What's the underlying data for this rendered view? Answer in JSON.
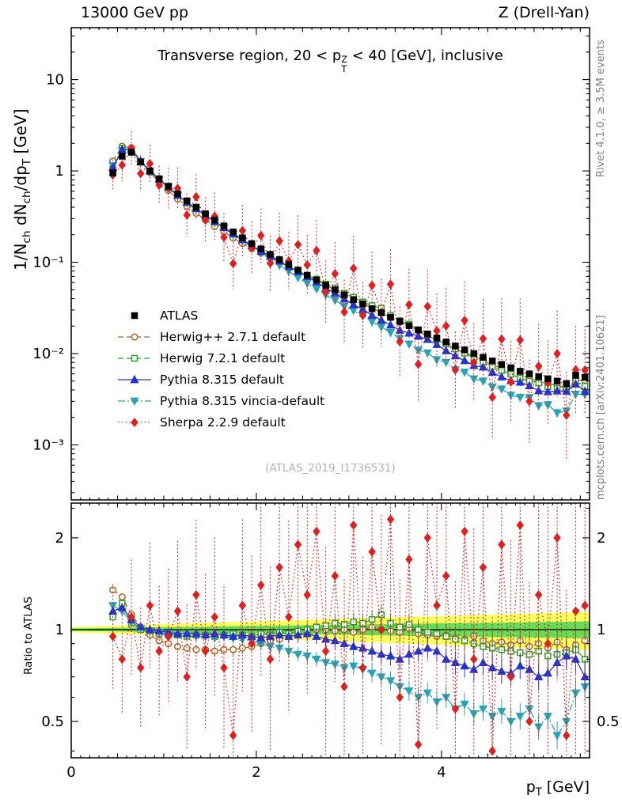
{
  "header": {
    "left": "13000 GeV pp",
    "right": "Z (Drell-Yan)"
  },
  "side_notes": {
    "top": "Rivet 4.1.0, ≥ 3.5M events",
    "bottom": "mcplots.cern.ch [arXiv:2401.10621]"
  },
  "watermark": "(ATLAS_2019_I1736531)",
  "title": {
    "pre": "Transverse region, 20 < p",
    "sup": "Z",
    "sub": "T",
    "post": " < 40 [GeV], inclusive"
  },
  "axis_labels": {
    "y_main": {
      "p1": "1/N",
      "s1": "ch",
      "p2": " dN",
      "s2": "ch",
      "p3": "/dp",
      "s3": "T",
      "p4": " [GeV]"
    },
    "y_ratio": "Ratio to ATLAS",
    "x": {
      "p1": "p",
      "s1": "T",
      "p2": " [GeV]"
    }
  },
  "chart_data": {
    "type": "line",
    "title": "Transverse region, 20 < pT(Z) < 40 [GeV], inclusive",
    "xlabel": "pT [GeV]",
    "ylabel": "1/Nch dNch/dpT [GeV]",
    "ratio_label": "Ratio to ATLAS",
    "x_range": [
      0,
      5.6
    ],
    "y_range_main": [
      0.00025,
      37
    ],
    "y_scale_main": "log",
    "y_range_ratio": [
      0.38,
      2.6
    ],
    "y_scale_ratio": "log",
    "x_ticks": [
      {
        "v": 0,
        "label": "0"
      },
      {
        "v": 2,
        "label": "2"
      },
      {
        "v": 4,
        "label": "4"
      }
    ],
    "y_ticks_main": [
      {
        "v": 10,
        "label": "10"
      },
      {
        "v": 1,
        "label": "1"
      },
      {
        "v": 0.1,
        "label": "10⁻¹"
      },
      {
        "v": 0.01,
        "label": "10⁻²"
      },
      {
        "v": 0.001,
        "label": "10⁻³"
      }
    ],
    "y_ticks_ratio": [
      {
        "v": 2,
        "label": "2"
      },
      {
        "v": 1,
        "label": "1"
      },
      {
        "v": 0.5,
        "label": "0.5"
      }
    ],
    "band": {
      "center": 1,
      "yellow_halfwidth_a": 0.02,
      "yellow_halfwidth_b": 0.022,
      "green_fraction": 0.45,
      "yellow_color": "#ffff4d",
      "green_color": "#55d955"
    },
    "x": [
      0.45,
      0.55,
      0.65,
      0.75,
      0.85,
      0.95,
      1.05,
      1.15,
      1.25,
      1.35,
      1.45,
      1.55,
      1.65,
      1.75,
      1.85,
      1.95,
      2.05,
      2.15,
      2.25,
      2.35,
      2.45,
      2.55,
      2.65,
      2.75,
      2.85,
      2.95,
      3.05,
      3.15,
      3.25,
      3.35,
      3.45,
      3.55,
      3.65,
      3.75,
      3.85,
      3.95,
      4.05,
      4.15,
      4.25,
      4.35,
      4.45,
      4.55,
      4.65,
      4.75,
      4.85,
      4.95,
      5.05,
      5.15,
      5.25,
      5.35,
      5.45,
      5.55
    ],
    "series": [
      {
        "name": "ATLAS",
        "color": "#000000",
        "marker": "square",
        "fill": "filled",
        "line": "none",
        "ref": true,
        "err_a": 0.015,
        "err_b": 0.012,
        "err_scale": 1,
        "values": [
          0.95,
          1.45,
          1.6,
          1.25,
          1.0,
          0.82,
          0.68,
          0.56,
          0.47,
          0.4,
          0.34,
          0.29,
          0.25,
          0.215,
          0.185,
          0.16,
          0.14,
          0.122,
          0.107,
          0.094,
          0.082,
          0.072,
          0.064,
          0.056,
          0.05,
          0.044,
          0.039,
          0.035,
          0.031,
          0.028,
          0.025,
          0.0225,
          0.0202,
          0.0182,
          0.0164,
          0.0148,
          0.0134,
          0.0121,
          0.011,
          0.01,
          0.0091,
          0.0083,
          0.0076,
          0.007,
          0.0064,
          0.006,
          0.0056,
          0.0053,
          0.005,
          0.0047,
          0.0058,
          0.0055
        ]
      },
      {
        "name": "Herwig++ 2.7.1 default",
        "color": "#aa6622",
        "marker": "circle",
        "fill": "open",
        "line": "dash",
        "err_a": 0.015,
        "err_b": 0.02,
        "err_scale": 1,
        "ratio": [
          1.35,
          1.28,
          1.12,
          1.02,
          0.96,
          0.92,
          0.9,
          0.88,
          0.87,
          0.86,
          0.86,
          0.85,
          0.86,
          0.86,
          0.87,
          0.88,
          0.9,
          0.92,
          0.93,
          0.95,
          0.97,
          0.98,
          1.0,
          1.0,
          0.99,
          1.0,
          0.98,
          1.0,
          1.02,
          1.0,
          0.99,
          0.98,
          1.01,
          0.97,
          0.96,
          0.95,
          0.96,
          0.94,
          0.93,
          0.95,
          0.92,
          0.9,
          0.91,
          0.89,
          0.92,
          0.88,
          0.9,
          0.87,
          0.91,
          0.86,
          0.89,
          0.92
        ]
      },
      {
        "name": "Herwig 7.2.1 default",
        "color": "#2e9e2e",
        "marker": "square",
        "fill": "open",
        "line": "dash",
        "err_a": 0.015,
        "err_b": 0.02,
        "err_scale": 1,
        "ratio": [
          1.1,
          1.22,
          1.05,
          1.0,
          0.99,
          0.97,
          0.96,
          0.96,
          0.95,
          0.96,
          0.96,
          0.95,
          0.96,
          0.97,
          0.96,
          0.95,
          0.97,
          0.96,
          0.98,
          0.97,
          0.99,
          1.0,
          1.02,
          1.03,
          1.05,
          1.04,
          1.06,
          1.05,
          1.08,
          1.12,
          1.05,
          1.02,
          1.04,
          1.0,
          0.98,
          0.97,
          0.95,
          0.93,
          0.92,
          0.9,
          0.88,
          0.87,
          0.86,
          0.85,
          0.84,
          0.83,
          0.85,
          0.82,
          0.83,
          0.84,
          0.86,
          0.8
        ]
      },
      {
        "name": "Pythia 8.315 default",
        "color": "#2233cc",
        "marker": "triangle-up",
        "fill": "filled",
        "line": "solid",
        "err_a": 0.015,
        "err_b": 0.02,
        "err_scale": 1,
        "ratio": [
          1.15,
          1.18,
          1.08,
          1.02,
          1.0,
          0.99,
          0.98,
          0.97,
          0.97,
          0.97,
          0.96,
          0.97,
          0.96,
          0.95,
          0.96,
          0.95,
          0.94,
          0.95,
          0.96,
          0.95,
          0.96,
          0.97,
          0.95,
          0.93,
          0.92,
          0.9,
          0.88,
          0.87,
          0.85,
          0.83,
          0.82,
          0.8,
          0.83,
          0.85,
          0.87,
          0.85,
          0.8,
          0.78,
          0.76,
          0.74,
          0.78,
          0.75,
          0.73,
          0.72,
          0.76,
          0.74,
          0.7,
          0.72,
          0.78,
          0.82,
          0.8,
          0.7
        ]
      },
      {
        "name": "Pythia 8.315 vincia-default",
        "color": "#29a3b5",
        "marker": "triangle-down",
        "fill": "filled",
        "line": "dashdot",
        "err_a": 0.015,
        "err_b": 0.02,
        "err_scale": 1,
        "ratio": [
          1.2,
          1.15,
          1.06,
          1.01,
          0.99,
          0.98,
          0.97,
          0.96,
          0.96,
          0.95,
          0.95,
          0.94,
          0.95,
          0.94,
          0.93,
          0.92,
          0.9,
          0.88,
          0.87,
          0.85,
          0.83,
          0.82,
          0.8,
          0.78,
          0.77,
          0.75,
          0.76,
          0.74,
          0.72,
          0.7,
          0.68,
          0.65,
          0.63,
          0.6,
          0.62,
          0.58,
          0.6,
          0.55,
          0.57,
          0.53,
          0.55,
          0.52,
          0.54,
          0.5,
          0.52,
          0.55,
          0.48,
          0.52,
          0.45,
          0.5,
          0.62,
          0.65
        ]
      },
      {
        "name": "Sherpa 2.2.9 default",
        "color": "#e02020",
        "marker": "diamond",
        "fill": "filled",
        "line": "dot",
        "err_a": 0.22,
        "err_b": 0.14,
        "err_scale": 2.2,
        "ratio": [
          0.95,
          0.8,
          1.1,
          0.75,
          1.2,
          0.85,
          0.95,
          1.15,
          0.7,
          1.3,
          0.85,
          1.1,
          0.75,
          0.45,
          1.2,
          0.9,
          1.4,
          0.8,
          1.6,
          1.1,
          1.9,
          1.3,
          2.1,
          0.85,
          1.5,
          0.65,
          2.2,
          0.75,
          1.8,
          1.0,
          2.3,
          0.6,
          1.7,
          0.42,
          2.0,
          1.2,
          1.5,
          0.55,
          2.1,
          0.8,
          1.6,
          0.4,
          1.9,
          0.7,
          2.2,
          0.5,
          1.3,
          0.9,
          2.0,
          0.45,
          1.15,
          1.2
        ]
      }
    ]
  }
}
